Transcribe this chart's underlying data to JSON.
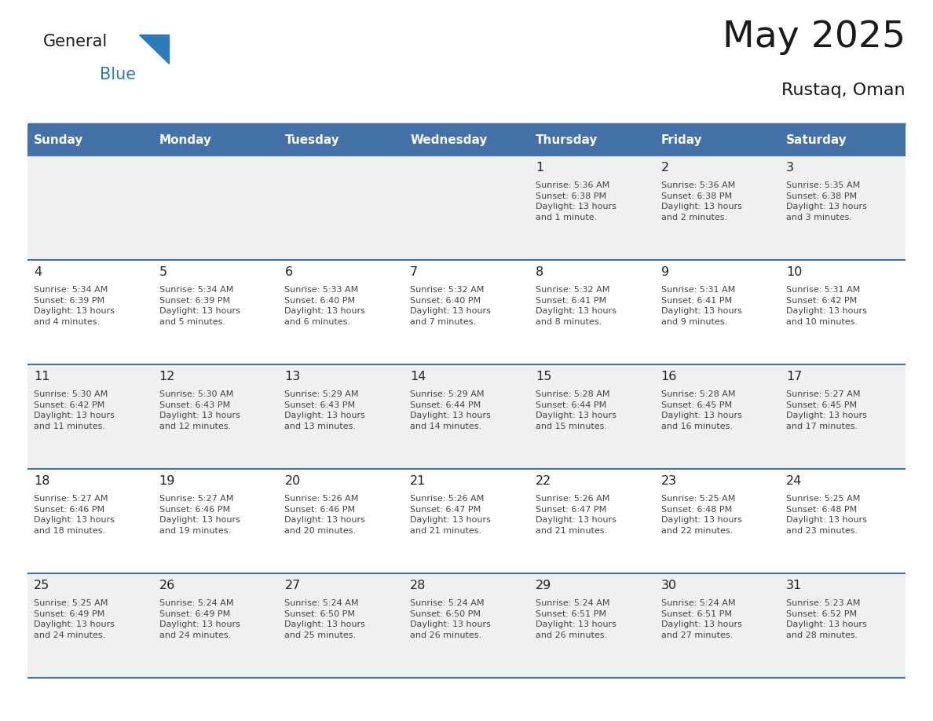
{
  "title": "May 2025",
  "subtitle": "Rustaq, Oman",
  "days_of_week": [
    "Sunday",
    "Monday",
    "Tuesday",
    "Wednesday",
    "Thursday",
    "Friday",
    "Saturday"
  ],
  "header_bg": "#4472a8",
  "header_text_color": "#ffffff",
  "cell_bg_odd": "#f0f0f0",
  "cell_bg_even": "#ffffff",
  "day_num_color": "#222222",
  "data_text_color": "#444444",
  "border_color": "#3a6ea5",
  "row_separator_color": "#4472a8",
  "title_color": "#1a1a1a",
  "subtitle_color": "#1a1a1a",
  "logo_general_color": "#1a1a1a",
  "logo_blue_color": "#2d7ab8",
  "weeks": [
    [
      {
        "day": "",
        "info": ""
      },
      {
        "day": "",
        "info": ""
      },
      {
        "day": "",
        "info": ""
      },
      {
        "day": "",
        "info": ""
      },
      {
        "day": "1",
        "info": "Sunrise: 5:36 AM\nSunset: 6:38 PM\nDaylight: 13 hours\nand 1 minute."
      },
      {
        "day": "2",
        "info": "Sunrise: 5:36 AM\nSunset: 6:38 PM\nDaylight: 13 hours\nand 2 minutes."
      },
      {
        "day": "3",
        "info": "Sunrise: 5:35 AM\nSunset: 6:38 PM\nDaylight: 13 hours\nand 3 minutes."
      }
    ],
    [
      {
        "day": "4",
        "info": "Sunrise: 5:34 AM\nSunset: 6:39 PM\nDaylight: 13 hours\nand 4 minutes."
      },
      {
        "day": "5",
        "info": "Sunrise: 5:34 AM\nSunset: 6:39 PM\nDaylight: 13 hours\nand 5 minutes."
      },
      {
        "day": "6",
        "info": "Sunrise: 5:33 AM\nSunset: 6:40 PM\nDaylight: 13 hours\nand 6 minutes."
      },
      {
        "day": "7",
        "info": "Sunrise: 5:32 AM\nSunset: 6:40 PM\nDaylight: 13 hours\nand 7 minutes."
      },
      {
        "day": "8",
        "info": "Sunrise: 5:32 AM\nSunset: 6:41 PM\nDaylight: 13 hours\nand 8 minutes."
      },
      {
        "day": "9",
        "info": "Sunrise: 5:31 AM\nSunset: 6:41 PM\nDaylight: 13 hours\nand 9 minutes."
      },
      {
        "day": "10",
        "info": "Sunrise: 5:31 AM\nSunset: 6:42 PM\nDaylight: 13 hours\nand 10 minutes."
      }
    ],
    [
      {
        "day": "11",
        "info": "Sunrise: 5:30 AM\nSunset: 6:42 PM\nDaylight: 13 hours\nand 11 minutes."
      },
      {
        "day": "12",
        "info": "Sunrise: 5:30 AM\nSunset: 6:43 PM\nDaylight: 13 hours\nand 12 minutes."
      },
      {
        "day": "13",
        "info": "Sunrise: 5:29 AM\nSunset: 6:43 PM\nDaylight: 13 hours\nand 13 minutes."
      },
      {
        "day": "14",
        "info": "Sunrise: 5:29 AM\nSunset: 6:44 PM\nDaylight: 13 hours\nand 14 minutes."
      },
      {
        "day": "15",
        "info": "Sunrise: 5:28 AM\nSunset: 6:44 PM\nDaylight: 13 hours\nand 15 minutes."
      },
      {
        "day": "16",
        "info": "Sunrise: 5:28 AM\nSunset: 6:45 PM\nDaylight: 13 hours\nand 16 minutes."
      },
      {
        "day": "17",
        "info": "Sunrise: 5:27 AM\nSunset: 6:45 PM\nDaylight: 13 hours\nand 17 minutes."
      }
    ],
    [
      {
        "day": "18",
        "info": "Sunrise: 5:27 AM\nSunset: 6:46 PM\nDaylight: 13 hours\nand 18 minutes."
      },
      {
        "day": "19",
        "info": "Sunrise: 5:27 AM\nSunset: 6:46 PM\nDaylight: 13 hours\nand 19 minutes."
      },
      {
        "day": "20",
        "info": "Sunrise: 5:26 AM\nSunset: 6:46 PM\nDaylight: 13 hours\nand 20 minutes."
      },
      {
        "day": "21",
        "info": "Sunrise: 5:26 AM\nSunset: 6:47 PM\nDaylight: 13 hours\nand 21 minutes."
      },
      {
        "day": "22",
        "info": "Sunrise: 5:26 AM\nSunset: 6:47 PM\nDaylight: 13 hours\nand 21 minutes."
      },
      {
        "day": "23",
        "info": "Sunrise: 5:25 AM\nSunset: 6:48 PM\nDaylight: 13 hours\nand 22 minutes."
      },
      {
        "day": "24",
        "info": "Sunrise: 5:25 AM\nSunset: 6:48 PM\nDaylight: 13 hours\nand 23 minutes."
      }
    ],
    [
      {
        "day": "25",
        "info": "Sunrise: 5:25 AM\nSunset: 6:49 PM\nDaylight: 13 hours\nand 24 minutes."
      },
      {
        "day": "26",
        "info": "Sunrise: 5:24 AM\nSunset: 6:49 PM\nDaylight: 13 hours\nand 24 minutes."
      },
      {
        "day": "27",
        "info": "Sunrise: 5:24 AM\nSunset: 6:50 PM\nDaylight: 13 hours\nand 25 minutes."
      },
      {
        "day": "28",
        "info": "Sunrise: 5:24 AM\nSunset: 6:50 PM\nDaylight: 13 hours\nand 26 minutes."
      },
      {
        "day": "29",
        "info": "Sunrise: 5:24 AM\nSunset: 6:51 PM\nDaylight: 13 hours\nand 26 minutes."
      },
      {
        "day": "30",
        "info": "Sunrise: 5:24 AM\nSunset: 6:51 PM\nDaylight: 13 hours\nand 27 minutes."
      },
      {
        "day": "31",
        "info": "Sunrise: 5:23 AM\nSunset: 6:52 PM\nDaylight: 13 hours\nand 28 minutes."
      }
    ]
  ]
}
